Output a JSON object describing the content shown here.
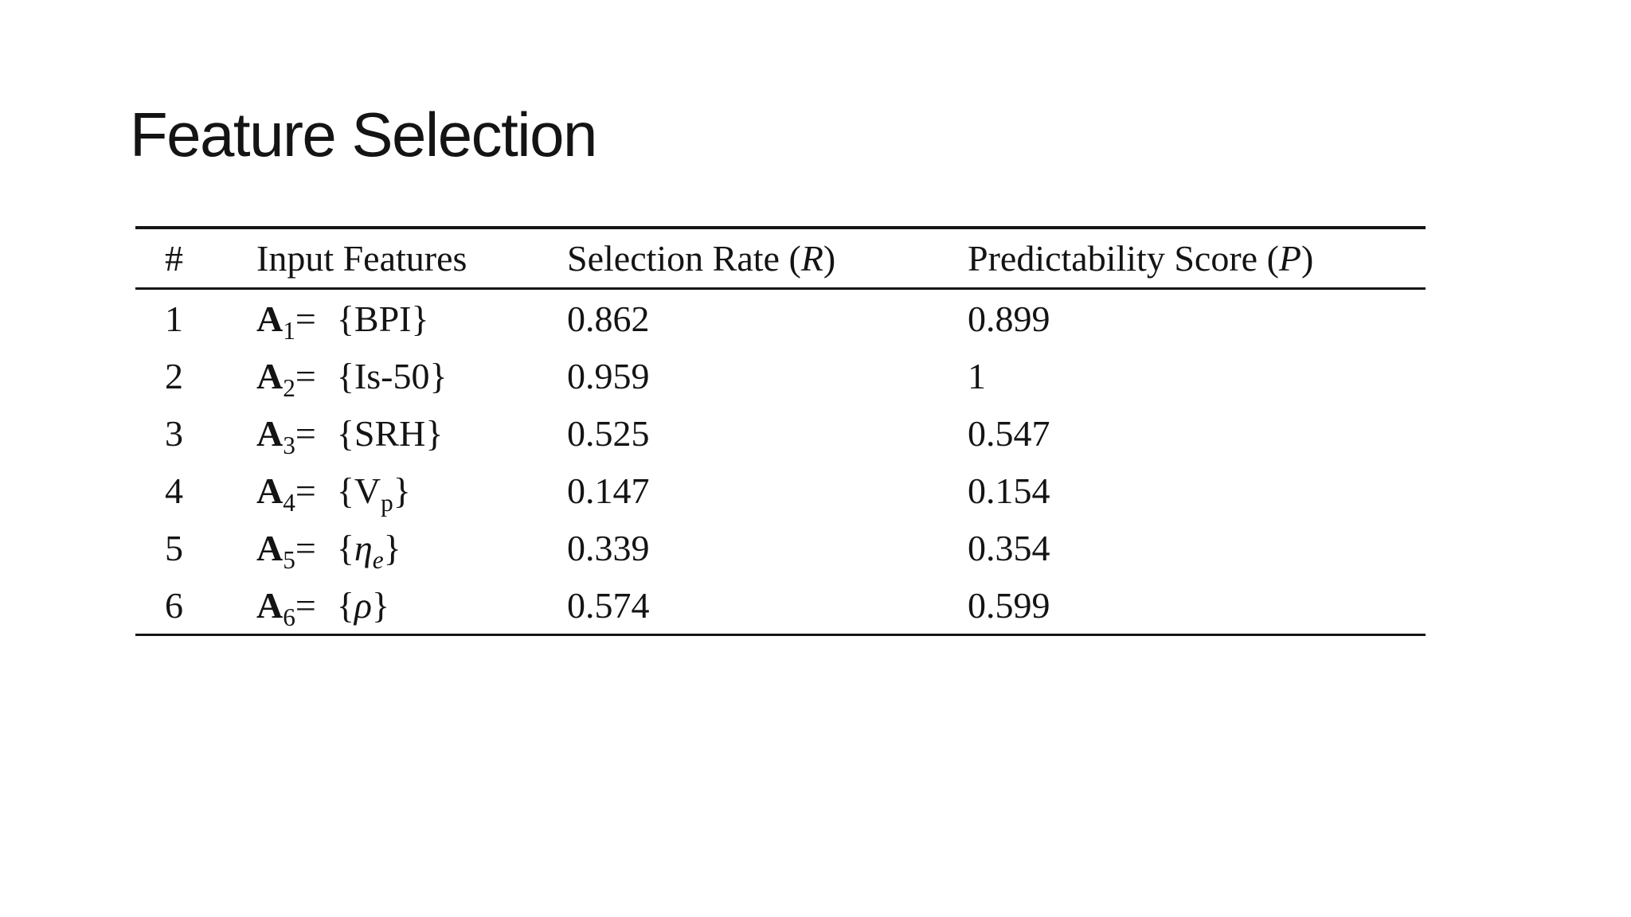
{
  "colors": {
    "background": "#ffffff",
    "text": "#141414",
    "rule": "#161616"
  },
  "slide": {
    "title": "Feature Selection"
  },
  "table": {
    "headers": [
      {
        "text": "#",
        "var": ""
      },
      {
        "text": "Input Features",
        "var": ""
      },
      {
        "text": "Selection Rate",
        "var": "R"
      },
      {
        "text": "Predictability Score",
        "var": "P"
      }
    ],
    "rows": [
      {
        "num": "1",
        "set_symbol": "A",
        "set_index": "1",
        "equals": "=",
        "brace_open": "{",
        "feature": "BPI",
        "feature_sub": "",
        "feature_italic": false,
        "brace_close": "}",
        "selection_rate": "0.862",
        "predictability_score": "0.899"
      },
      {
        "num": "2",
        "set_symbol": "A",
        "set_index": "2",
        "equals": "=",
        "brace_open": "{",
        "feature": "Is-50",
        "feature_sub": "",
        "feature_italic": false,
        "brace_close": "}",
        "selection_rate": "0.959",
        "predictability_score": "1"
      },
      {
        "num": "3",
        "set_symbol": "A",
        "set_index": "3",
        "equals": "=",
        "brace_open": "{",
        "feature": "SRH",
        "feature_sub": "",
        "feature_italic": false,
        "brace_close": "}",
        "selection_rate": "0.525",
        "predictability_score": "0.547"
      },
      {
        "num": "4",
        "set_symbol": "A",
        "set_index": "4",
        "equals": "=",
        "brace_open": "{",
        "feature": "V",
        "feature_sub": "p",
        "feature_italic": false,
        "brace_close": "}",
        "selection_rate": "0.147",
        "predictability_score": "0.154"
      },
      {
        "num": "5",
        "set_symbol": "A",
        "set_index": "5",
        "equals": "=",
        "brace_open": "{",
        "feature": "η",
        "feature_sub": "e",
        "feature_italic": true,
        "brace_close": "}",
        "selection_rate": "0.339",
        "predictability_score": "0.354"
      },
      {
        "num": "6",
        "set_symbol": "A",
        "set_index": "6",
        "equals": "=",
        "brace_open": "{",
        "feature": "ρ",
        "feature_sub": "",
        "feature_italic": true,
        "brace_close": "}",
        "selection_rate": "0.574",
        "predictability_score": "0.599"
      }
    ]
  }
}
